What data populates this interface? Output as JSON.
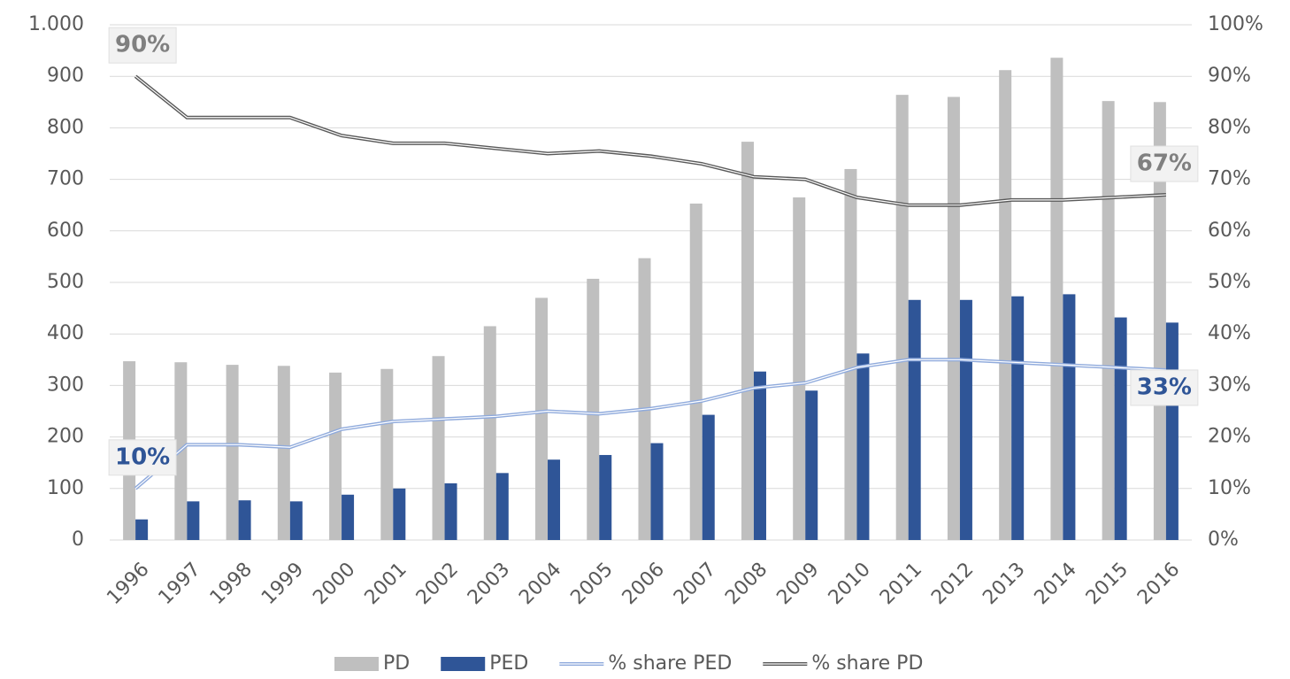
{
  "chart_data": {
    "type": "bar_line",
    "categories": [
      "1996",
      "1997",
      "1998",
      "1999",
      "2000",
      "2001",
      "2002",
      "2003",
      "2004",
      "2005",
      "2006",
      "2007",
      "2008",
      "2009",
      "2010",
      "2011",
      "2012",
      "2013",
      "2014",
      "2015",
      "2016"
    ],
    "series": [
      {
        "name": "PD",
        "type": "bar",
        "color": "#bfbfbf",
        "values": [
          347,
          345,
          340,
          338,
          325,
          332,
          357,
          415,
          470,
          507,
          547,
          653,
          773,
          665,
          720,
          864,
          860,
          912,
          936,
          852,
          850
        ]
      },
      {
        "name": "PED",
        "type": "bar",
        "color": "#2f5597",
        "values": [
          40,
          75,
          77,
          75,
          88,
          100,
          110,
          130,
          156,
          165,
          188,
          243,
          327,
          290,
          362,
          466,
          466,
          473,
          477,
          432,
          422
        ]
      },
      {
        "name": "% share PED",
        "type": "line",
        "axis": "y2",
        "color": "#8faadc",
        "label_color": "#2f5597",
        "values": [
          10,
          18.5,
          18.5,
          18,
          21.5,
          23,
          23.5,
          24,
          25,
          24.5,
          25.5,
          27,
          29.5,
          30.5,
          33.5,
          35,
          35,
          34.5,
          34,
          33.5,
          33
        ],
        "value_labels": [
          "10%",
          null,
          null,
          null,
          null,
          null,
          null,
          null,
          null,
          null,
          null,
          null,
          null,
          null,
          null,
          null,
          null,
          null,
          null,
          null,
          "33%"
        ]
      },
      {
        "name": "% share PD",
        "type": "line",
        "axis": "y2",
        "color": "#595959",
        "label_color": "#808080",
        "values": [
          90,
          82,
          82,
          82,
          78.5,
          77,
          77,
          76,
          75,
          75.5,
          74.5,
          73,
          70.5,
          70,
          66.5,
          65,
          65,
          66,
          66,
          66.5,
          67
        ],
        "value_labels": [
          "90%",
          null,
          null,
          null,
          null,
          null,
          null,
          null,
          null,
          null,
          null,
          null,
          null,
          null,
          null,
          null,
          null,
          null,
          null,
          null,
          "67%"
        ]
      }
    ],
    "ylim": [
      0,
      1000
    ],
    "yticks": [
      0,
      100,
      200,
      300,
      400,
      500,
      600,
      700,
      800,
      900,
      {
        "value": 1000,
        "label": "1.000"
      }
    ],
    "y2lim": [
      0,
      100
    ],
    "y2ticks": [
      {
        "value": 0,
        "label": "0%"
      },
      {
        "value": 10,
        "label": "10%"
      },
      {
        "value": 20,
        "label": "20%"
      },
      {
        "value": 30,
        "label": "30%"
      },
      {
        "value": 40,
        "label": "40%"
      },
      {
        "value": 50,
        "label": "50%"
      },
      {
        "value": 60,
        "label": "60%"
      },
      {
        "value": 70,
        "label": "70%"
      },
      {
        "value": 80,
        "label": "80%"
      },
      {
        "value": 90,
        "label": "90%"
      },
      {
        "value": 100,
        "label": "100%"
      }
    ],
    "grid": true,
    "legend": "bottom"
  }
}
